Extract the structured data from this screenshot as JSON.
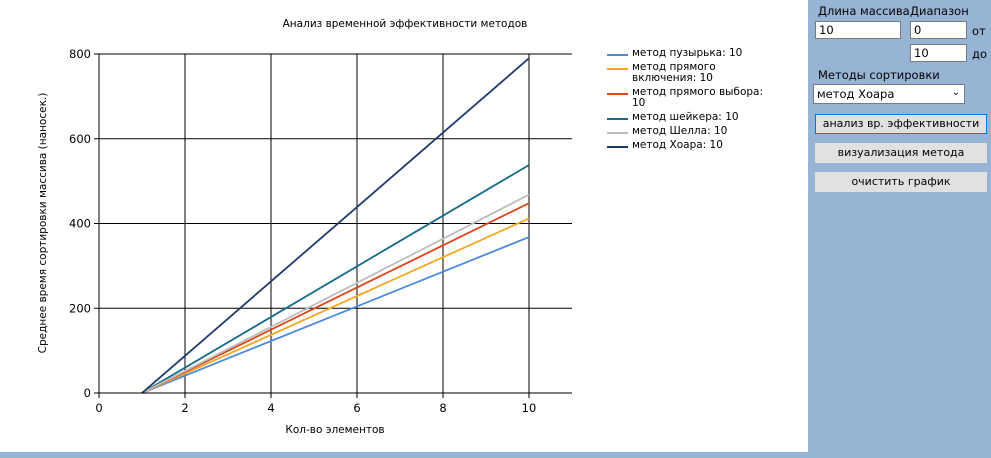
{
  "controls": {
    "length_label": "Длина массива",
    "range_label": "Диапазон",
    "length_value": "10",
    "range_from_value": "0",
    "range_from_label": "от",
    "range_to_value": "10",
    "range_to_label": "до",
    "methods_label": "Методы сортировки",
    "method_selected": "метод Хоара",
    "analyze_button": "анализ вр. эффективности",
    "visualize_button": "визуализация метода",
    "clear_button": "очистить график"
  },
  "chart_data": {
    "type": "line",
    "title": "Анализ временной эффективности методов",
    "xlabel": "Кол-во элементов",
    "ylabel": "Среднее время сортировки массива (наносек.)",
    "xlim": [
      0,
      11
    ],
    "ylim": [
      0,
      800
    ],
    "xticks": [
      0,
      2,
      4,
      6,
      8,
      10
    ],
    "yticks": [
      0,
      200,
      400,
      600,
      800
    ],
    "grid": true,
    "legend_position": "right",
    "x": [
      1,
      10
    ],
    "series": [
      {
        "name": "метод пузырька: 10",
        "color": "#4a8be0",
        "values": [
          0,
          368
        ]
      },
      {
        "name": "метод прямого включения: 10",
        "color": "#f5a623",
        "values": [
          0,
          412
        ]
      },
      {
        "name": "метод прямого выбора: 10",
        "color": "#d9471b",
        "values": [
          0,
          448
        ]
      },
      {
        "name": "метод шейкера: 10",
        "color": "#156a8a",
        "values": [
          0,
          538
        ]
      },
      {
        "name": "метод Шелла: 10",
        "color": "#bdbdbd",
        "values": [
          0,
          468
        ]
      },
      {
        "name": "метод Хоара: 10",
        "color": "#1e3a6b",
        "values": [
          0,
          790
        ]
      }
    ]
  }
}
